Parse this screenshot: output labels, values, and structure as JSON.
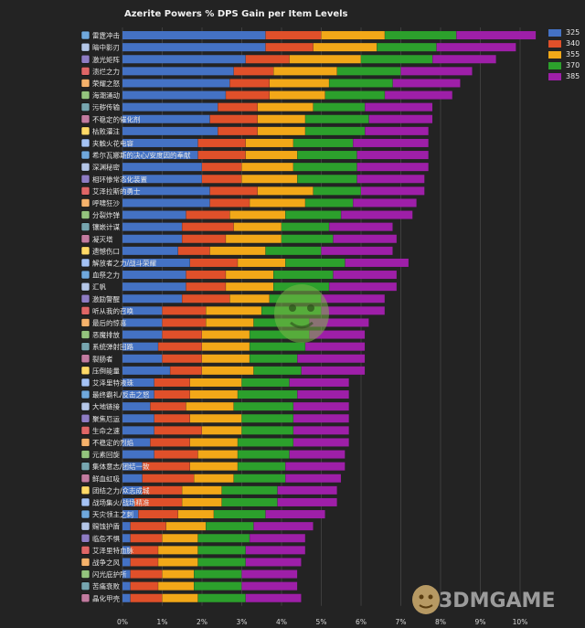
{
  "chart_data": {
    "type": "bar",
    "orientation": "horizontal",
    "stacked": true,
    "title": "Azerite Powers % DPS Gain per Item Levels",
    "xlabel": "",
    "ylabel": "",
    "xlim": [
      0,
      11.5
    ],
    "x_ticks": [
      "0%",
      "1%",
      "2%",
      "3%",
      "4%",
      "5%",
      "6%",
      "7%",
      "8%",
      "9%",
      "10%"
    ],
    "grid": "vertical",
    "legend_position": "top-right",
    "categories": [
      "雷霆冲击",
      "暗中影刃",
      "激光矩阵",
      "溃烂之力",
      "荣耀之怒",
      "海潮涌动",
      "污秽传输",
      "不稳定的催化剂",
      "枯败灌注",
      "夹触火花电容",
      "希尔瓦娜斯的决心/安度因的奉献",
      "深渊秘密",
      "相环惨常态化装置",
      "艾泽拉斯的勇士",
      "呼啸狂沙",
      "分裂炸弹",
      "镶嵌计谋",
      "凝灭塔",
      "遗憾伤口",
      "解放者之力/战斗荣耀",
      "血祭之力",
      "汇帆",
      "激励警醒",
      "听从我的召唤",
      "最后的惊喜",
      "恶魔排放",
      "系统弹射回路",
      "裂肠者",
      "压倒能量",
      "艾泽里特液珠",
      "最终霸礼/反击之怒",
      "大地链接",
      "聚焦厄运",
      "生命之速",
      "不稳定的烈焰",
      "元素回旋",
      "集体意志/团结一致",
      "鲜血虹吸",
      "团结之力/众志成城",
      "战场集火/战场精准",
      "天灾领主之刺",
      "赐蚀护盾",
      "临危不惧",
      "艾泽里特血脉",
      "战争之风",
      "闪光庇护所",
      "苦痛衰败",
      "晶化甲壳"
    ],
    "series": [
      {
        "name": "325",
        "color": "#4472c4",
        "values": [
          3.6,
          3.6,
          3.1,
          2.8,
          2.7,
          2.6,
          2.4,
          2.2,
          2.4,
          1.9,
          1.9,
          2.0,
          2.0,
          2.2,
          2.2,
          1.6,
          1.5,
          1.5,
          1.4,
          1.7,
          1.6,
          1.6,
          1.5,
          1.0,
          1.0,
          1.0,
          0.9,
          1.0,
          1.2,
          0.8,
          0.8,
          0.7,
          0.8,
          0.8,
          0.7,
          0.8,
          0.5,
          0.5,
          0.5,
          0.3,
          0.4,
          0.2,
          0.2,
          0.2,
          0.2,
          0.2,
          0.2,
          0.2
        ]
      },
      {
        "name": "340",
        "color": "#e0502a",
        "values": [
          1.4,
          1.2,
          1.1,
          1.0,
          1.0,
          1.1,
          1.0,
          1.2,
          1.0,
          1.2,
          1.2,
          1.0,
          1.0,
          1.2,
          1.0,
          1.1,
          1.3,
          1.1,
          0.8,
          1.2,
          1.0,
          1.0,
          1.2,
          1.1,
          1.1,
          1.0,
          1.1,
          1.0,
          0.8,
          0.9,
          0.9,
          0.9,
          0.9,
          1.2,
          1.0,
          1.1,
          1.2,
          1.3,
          1.0,
          1.2,
          1.0,
          0.9,
          0.8,
          0.7,
          0.7,
          0.8,
          0.7,
          0.8
        ]
      },
      {
        "name": "355",
        "color": "#f2a818",
        "values": [
          1.6,
          1.6,
          1.8,
          1.6,
          1.5,
          1.4,
          1.4,
          1.2,
          1.2,
          1.2,
          1.3,
          1.3,
          1.4,
          1.4,
          1.4,
          1.4,
          1.2,
          1.4,
          1.4,
          1.2,
          1.2,
          1.2,
          1.0,
          1.4,
          1.2,
          1.2,
          1.2,
          1.2,
          1.3,
          1.3,
          1.2,
          1.2,
          1.3,
          1.0,
          1.2,
          1.0,
          1.2,
          1.0,
          1.0,
          1.0,
          0.9,
          1.0,
          0.9,
          1.0,
          1.0,
          0.8,
          0.9,
          0.9
        ]
      },
      {
        "name": "370",
        "color": "#2ca02c",
        "values": [
          1.8,
          1.5,
          1.8,
          1.6,
          1.6,
          1.5,
          1.3,
          1.6,
          1.5,
          1.5,
          1.5,
          1.6,
          1.5,
          1.2,
          1.2,
          1.4,
          1.2,
          1.3,
          1.4,
          1.5,
          1.5,
          1.4,
          1.3,
          1.5,
          1.4,
          1.5,
          1.4,
          1.2,
          1.2,
          1.2,
          1.5,
          1.5,
          1.3,
          1.3,
          1.4,
          1.3,
          1.2,
          1.3,
          1.4,
          1.4,
          1.3,
          1.2,
          1.3,
          1.2,
          1.2,
          1.2,
          1.2,
          1.2
        ]
      },
      {
        "name": "385",
        "color": "#9e1fa8",
        "values": [
          2.0,
          2.0,
          1.6,
          1.8,
          1.7,
          1.7,
          1.7,
          1.6,
          1.6,
          1.9,
          1.8,
          1.8,
          1.7,
          1.6,
          1.6,
          1.8,
          1.6,
          1.6,
          1.8,
          1.6,
          1.6,
          1.7,
          1.6,
          1.6,
          1.5,
          1.4,
          1.5,
          1.7,
          1.6,
          1.5,
          1.3,
          1.4,
          1.4,
          1.4,
          1.4,
          1.4,
          1.5,
          1.4,
          1.5,
          1.5,
          1.5,
          1.5,
          1.4,
          1.5,
          1.4,
          1.4,
          1.4,
          1.4
        ]
      }
    ]
  },
  "icon_colors": [
    "#6fa8dc",
    "#b4c6e7",
    "#8e7cc3",
    "#e06666",
    "#f6b26b",
    "#93c47d",
    "#76a5af",
    "#c27ba0",
    "#ffd966",
    "#a4c2f4"
  ]
}
